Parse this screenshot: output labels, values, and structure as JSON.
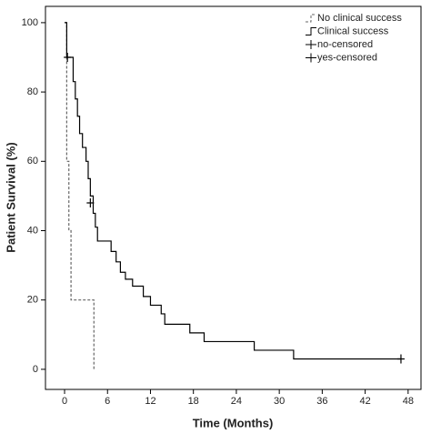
{
  "chart_data": {
    "type": "step",
    "xlabel": "Time (Months)",
    "ylabel": "Patient Survival (%)",
    "xlim": [
      -2.67,
      49.8
    ],
    "ylim": [
      -5.8,
      104.7
    ],
    "xticks": [
      0,
      6,
      12,
      18,
      24,
      30,
      36,
      42,
      48
    ],
    "yticks": [
      0,
      20,
      40,
      60,
      80,
      100
    ],
    "legend": "upper right",
    "series": [
      {
        "name": "No clinical success",
        "kind": "line",
        "color": "#666666",
        "dashed": true,
        "x": [
          0,
          0.3,
          0.6,
          0.9,
          4.1
        ],
        "values": [
          100,
          60,
          40,
          20,
          0
        ]
      },
      {
        "name": "Clinical success",
        "kind": "line",
        "color": "#000000",
        "dashed": false,
        "x": [
          0,
          0.3,
          1.2,
          1.5,
          1.8,
          2.1,
          2.5,
          3,
          3.3,
          3.6,
          4,
          4.3,
          4.6,
          6.5,
          7.2,
          7.8,
          8.5,
          9.5,
          11,
          12,
          13.5,
          14,
          17.5,
          19.5,
          26.5,
          32,
          47
        ],
        "values": [
          100,
          90,
          83,
          78,
          73,
          68,
          64,
          60,
          55,
          50,
          45,
          41,
          37,
          34,
          31,
          28,
          26,
          24,
          21,
          18.5,
          16,
          13,
          10.5,
          8,
          5.5,
          3,
          3
        ]
      },
      {
        "name": "no-censored",
        "kind": "censor",
        "color": "#000000",
        "x": [],
        "values": []
      },
      {
        "name": "yes-censored",
        "kind": "censor",
        "color": "#000000",
        "x": [
          0.4,
          3.6,
          47
        ],
        "values": [
          90,
          48,
          3
        ]
      }
    ]
  }
}
